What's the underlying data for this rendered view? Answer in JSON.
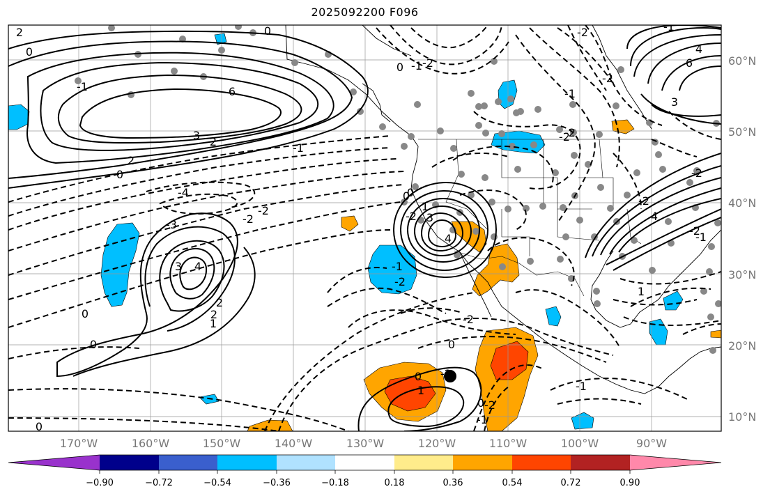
{
  "title": "2025092200 F096",
  "lat_labels": [
    "60°N",
    "50°N",
    "40°N",
    "30°N",
    "20°N",
    "10°N"
  ],
  "lon_labels": [
    "170°W",
    "160°W",
    "150°W",
    "140°W",
    "130°W",
    "120°W",
    "110°W",
    "100°W",
    "90°W"
  ],
  "colorbar": {
    "colors": [
      "#9932CC",
      "#00008B",
      "#3A5FCD",
      "#00BFFF",
      "#B0E2FF",
      "#FFFFFF",
      "#FFEC8B",
      "#FFA500",
      "#FF4500",
      "#B22222",
      "#FF88AA"
    ],
    "tick_labels": [
      "−0.90",
      "−0.72",
      "−0.54",
      "−0.36",
      "−0.18",
      "0.18",
      "0.36",
      "0.54",
      "0.72",
      "0.90"
    ]
  },
  "contour_labels": [
    "2",
    "0",
    "0",
    "-1",
    "6",
    "3",
    "2",
    "2",
    "0",
    "-1",
    "-4",
    "-3",
    "-2",
    "-2",
    "3",
    "4",
    "2",
    "2",
    "1",
    "0",
    "0",
    "0",
    "0",
    "-2",
    "-1",
    "-2",
    "1",
    "3",
    "4",
    "-2",
    "0",
    "-1",
    "-2",
    "0",
    "-2",
    "0",
    "1",
    "-1",
    "0",
    "-1",
    "-2",
    "-2",
    "-1",
    "6",
    "4",
    "3",
    "-2",
    "-1",
    "4",
    "-2",
    "-1",
    "1",
    "-2",
    "-2",
    "-2",
    "0",
    "-2"
  ]
}
